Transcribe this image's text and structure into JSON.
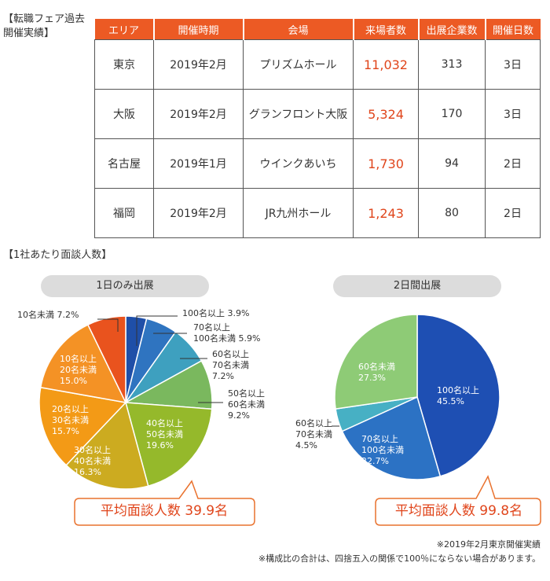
{
  "table_section": {
    "title": "【転職フェア過去開催実績】",
    "headers": [
      "エリア",
      "開催時期",
      "会場",
      "来場者数",
      "出展企業数",
      "開催日数"
    ],
    "rows": [
      [
        "東京",
        "2019年2月",
        "プリズムホール",
        "11,032",
        "313",
        "3日"
      ],
      [
        "大阪",
        "2019年2月",
        "グランフロント大阪",
        "5,324",
        "170",
        "3日"
      ],
      [
        "名古屋",
        "2019年1月",
        "ウインクあいち",
        "1,730",
        "94",
        "2日"
      ],
      [
        "福岡",
        "2019年2月",
        "JR九州ホール",
        "1,243",
        "80",
        "2日"
      ]
    ]
  },
  "pie_section": {
    "title": "【1社あたり面談人数】"
  },
  "chart_data": [
    {
      "type": "pie",
      "title": "1日のみ出展",
      "slices": [
        {
          "label": "100名以上",
          "value": 3.9,
          "color": "#1f4fa8"
        },
        {
          "label": "70名以上 100名未満",
          "value": 5.9,
          "color": "#2f74c0"
        },
        {
          "label": "60名以上 70名未満",
          "value": 7.2,
          "color": "#3ea0bf"
        },
        {
          "label": "50名以上 60名未満",
          "value": 9.2,
          "color": "#7ab85e"
        },
        {
          "label": "40名以上 50名未満",
          "value": 19.6,
          "color": "#95b92b"
        },
        {
          "label": "30名以上 40名未満",
          "value": 16.3,
          "color": "#ccab20"
        },
        {
          "label": "20名以上 30名未満",
          "value": 15.7,
          "color": "#f39a16"
        },
        {
          "label": "10名以上 20名未満",
          "value": 15.0,
          "color": "#f49225"
        },
        {
          "label": "10名未満",
          "value": 7.2,
          "color": "#e9531e"
        }
      ],
      "callout": "平均面談人数 39.9名"
    },
    {
      "type": "pie",
      "title": "2日間出展",
      "slices": [
        {
          "label": "100名以上",
          "value": 45.5,
          "color": "#1e4fb3"
        },
        {
          "label": "70名以上 100名未満",
          "value": 22.7,
          "color": "#2c72c4"
        },
        {
          "label": "60名以上 70名未満",
          "value": 4.5,
          "color": "#47b0c4"
        },
        {
          "label": "60名未満",
          "value": 27.3,
          "color": "#8ecb76"
        }
      ],
      "callout": "平均面談人数 99.8名"
    }
  ],
  "footnotes": [
    "※2019年2月東京開催実績",
    "※構成比の合計は、四捨五入の関係で100％にならない場合があります。"
  ]
}
